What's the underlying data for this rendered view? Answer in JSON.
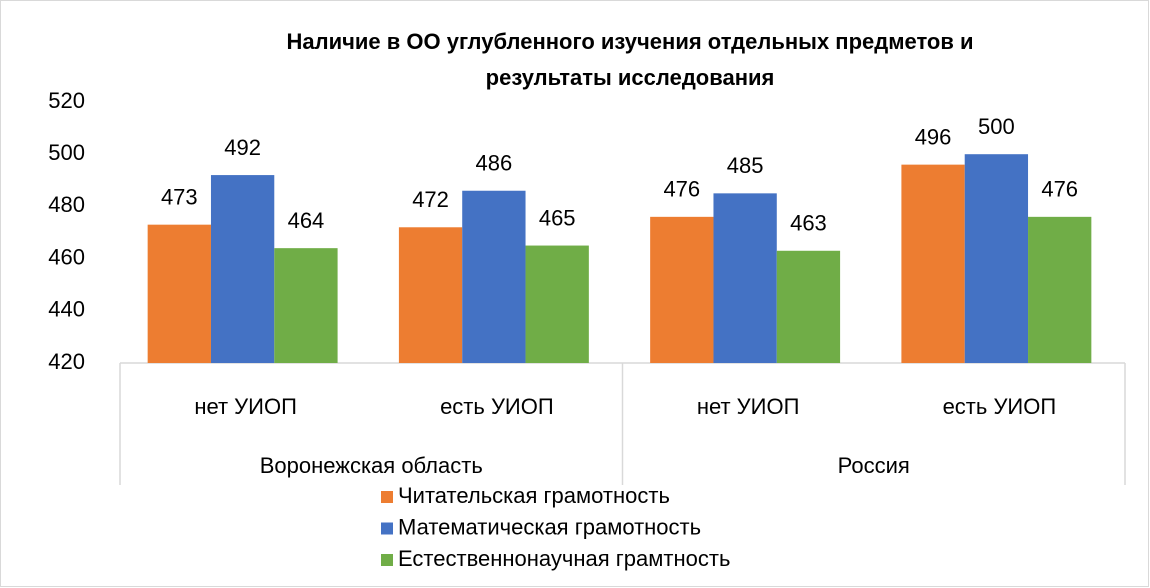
{
  "chart_data": {
    "type": "bar",
    "title": [
      "Наличие в ОО углубленного изучения отдельных предметов  и",
      "результаты исследования"
    ],
    "groups": [
      {
        "name": "Воронежская область",
        "categories": [
          "нет УИОП",
          "есть УИОП"
        ]
      },
      {
        "name": "Россия",
        "categories": [
          "нет УИОП",
          "есть УИОП"
        ]
      }
    ],
    "series": [
      {
        "name": "Читательская грамотность",
        "color": "#ed7d31",
        "values": [
          473,
          472,
          476,
          496
        ]
      },
      {
        "name": "Математическая грамотность",
        "color": "#4472c4",
        "values": [
          492,
          486,
          485,
          500
        ]
      },
      {
        "name": "Естественнонаучная грамтность",
        "color": "#70ad47",
        "values": [
          464,
          465,
          463,
          476
        ]
      }
    ],
    "ylim": [
      420,
      520
    ],
    "yticks": [
      420,
      440,
      460,
      480,
      500,
      520
    ],
    "grid": false,
    "legend": "bottom"
  }
}
